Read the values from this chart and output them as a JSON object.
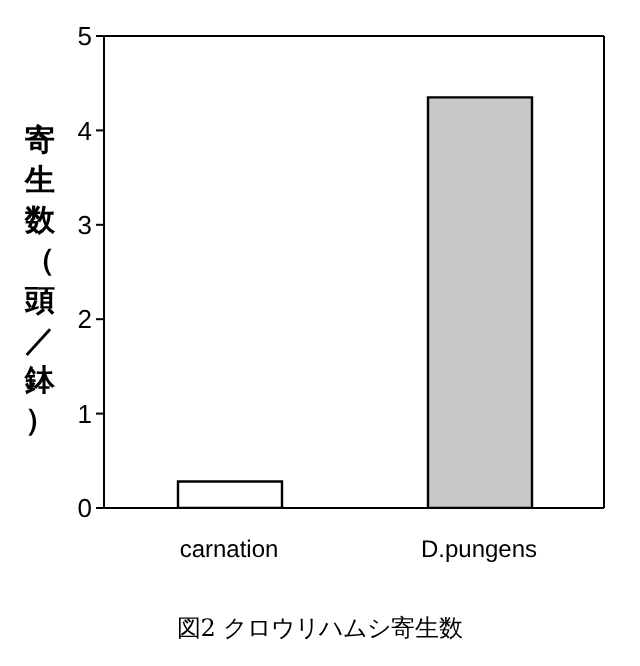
{
  "chart_data": {
    "type": "bar",
    "title": "図2 クロウリハムシ寄生数",
    "ylabel": "寄生数（頭／鉢）",
    "categories": [
      "carnation",
      "D.pungens"
    ],
    "values": [
      0.28,
      4.35
    ],
    "colors": [
      "#ffffff",
      "#c8c8c8"
    ],
    "ylim": [
      0,
      5
    ],
    "yticks": [
      0,
      1,
      2,
      3,
      4,
      5
    ],
    "grid": false,
    "legend": false
  }
}
